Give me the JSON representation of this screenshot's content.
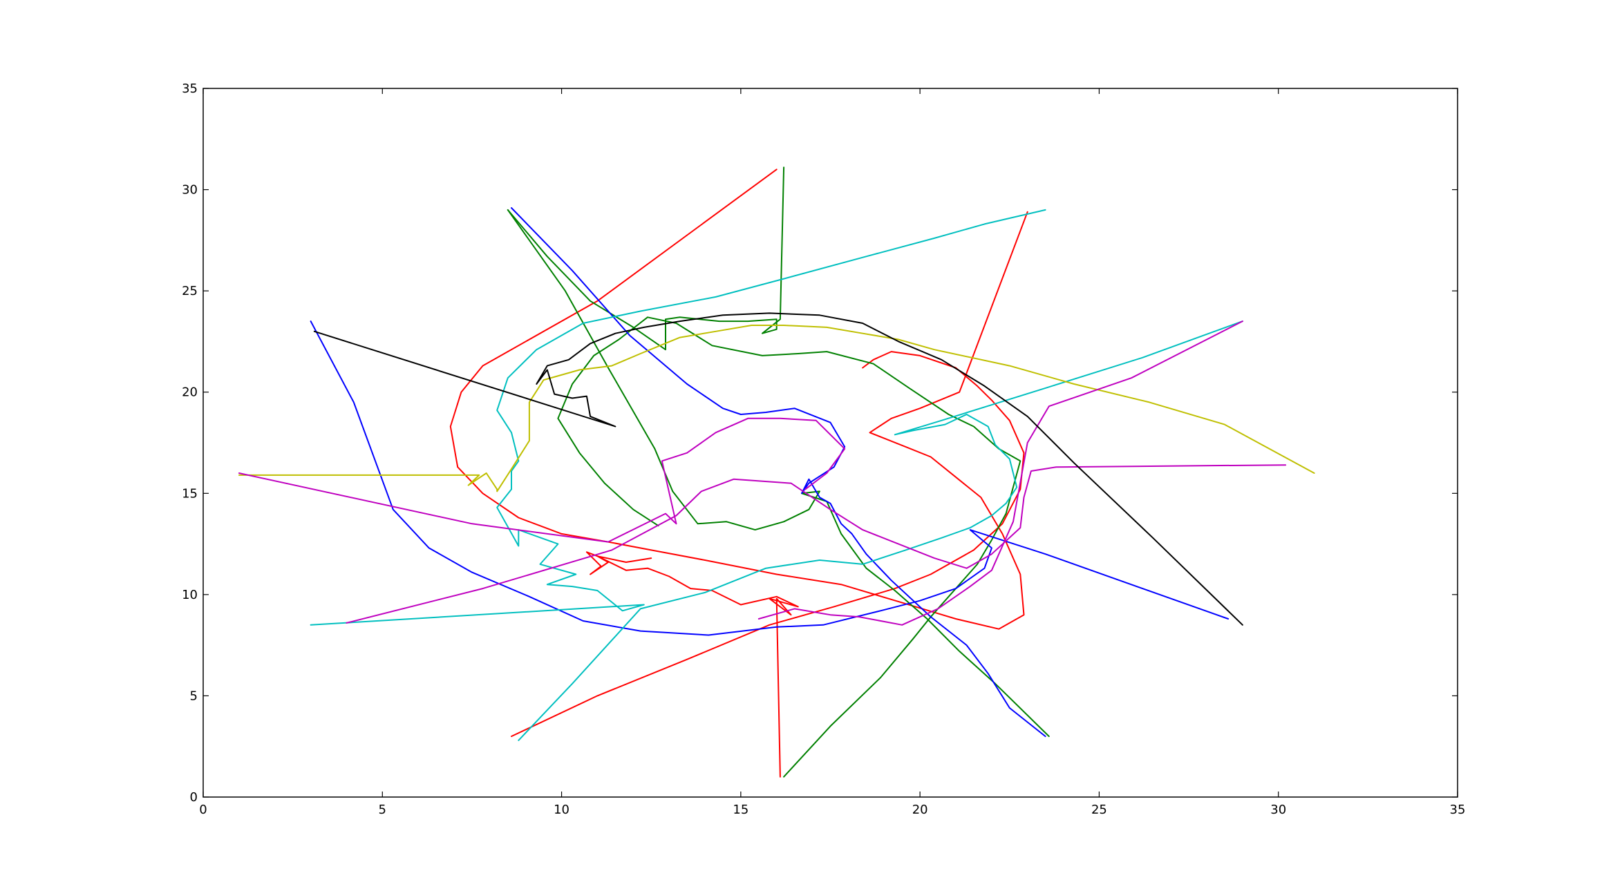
{
  "chart_data": {
    "type": "line",
    "title": "",
    "xlabel": "",
    "ylabel": "",
    "xlim": [
      0,
      35
    ],
    "ylim": [
      0,
      35
    ],
    "xticks": [
      0,
      5,
      10,
      15,
      20,
      25,
      30,
      35
    ],
    "yticks": [
      0,
      5,
      10,
      15,
      20,
      25,
      30,
      35
    ],
    "grid": false,
    "legend": "none",
    "series": [
      {
        "color": "#ff0000",
        "x": [
          16,
          11,
          7.8,
          7.2,
          6.9,
          7.1,
          7.8,
          8.8,
          10,
          11.3,
          12.5,
          14,
          16,
          17.8,
          19.5,
          21,
          22.2,
          22.9,
          22.8,
          22.3,
          21.7,
          21,
          20.3,
          19.6,
          18.6,
          19.2,
          20,
          21.1,
          23
        ],
        "y": [
          31,
          24.5,
          21.3,
          20,
          18.3,
          16.3,
          15,
          13.8,
          13,
          12.6,
          12.2,
          11.7,
          11,
          10.5,
          9.6,
          8.8,
          8.3,
          9,
          11,
          13,
          14.8,
          15.8,
          16.8,
          17.3,
          18,
          18.7,
          19.2,
          20,
          28.9
        ],
        "x_seg2": []
      },
      {
        "color": "#ff0000",
        "x": [
          8.6,
          11,
          13.5,
          15.8,
          17.6,
          19.3,
          20.3,
          21.5,
          22.3,
          22.8,
          22.9,
          22.5,
          22,
          21.6,
          21,
          20,
          19.2,
          18.7,
          18.4
        ],
        "y": [
          3,
          5,
          6.8,
          8.5,
          9.4,
          10.3,
          11,
          12.2,
          13.5,
          15.2,
          17,
          18.6,
          19.6,
          20.3,
          21.2,
          21.8,
          22,
          21.6,
          21.2
        ]
      },
      {
        "color": "#ff0000",
        "x": [
          16.1,
          16,
          16.4,
          15.8,
          16.6,
          16,
          15,
          14.2,
          13.6,
          13,
          12.4,
          11.8,
          11,
          10.7,
          11.1,
          10.8,
          11.3,
          11,
          11.8,
          12.5
        ],
        "y": [
          1,
          9.8,
          9,
          9.8,
          9.4,
          9.9,
          9.5,
          10.2,
          10.3,
          10.9,
          11.3,
          11.2,
          11.9,
          12.1,
          11.4,
          11,
          11.6,
          11.9,
          11.6,
          11.8
        ]
      },
      {
        "color": "#008000",
        "x": [
          8.5,
          9.6,
          10.8,
          12,
          12.9,
          12.9,
          13.3,
          14.4,
          15.2,
          16,
          16,
          15.6,
          16.1,
          16.2
        ],
        "y": [
          29,
          26.7,
          24.5,
          23.2,
          22.1,
          23.6,
          23.7,
          23.5,
          23.5,
          23.6,
          23.1,
          22.9,
          23.6,
          31.1
        ]
      },
      {
        "color": "#008000",
        "x": [
          16.2,
          17.5,
          18.9,
          19.8,
          20.3,
          21,
          21.6,
          22,
          22.4,
          22.8,
          22.2,
          21.5,
          20.8,
          19.7,
          18.7,
          17.4,
          16.6,
          15.6,
          14.2,
          13.2,
          12.4,
          11.6,
          10.9,
          10.3,
          9.9,
          10.5,
          11.2,
          12,
          12.7
        ],
        "y": [
          1,
          3.5,
          5.9,
          7.8,
          8.9,
          10.3,
          11.5,
          12.7,
          14,
          16.6,
          17.2,
          18.3,
          18.9,
          20.2,
          21.4,
          22,
          21.9,
          21.8,
          22.3,
          23.4,
          23.7,
          22.6,
          21.8,
          20.4,
          18.7,
          17,
          15.5,
          14.2,
          13.4
        ]
      },
      {
        "color": "#008000",
        "x": [
          8.5,
          10.1,
          11.3,
          12.6,
          13.1,
          13.8,
          14.6,
          15.4,
          16.2,
          16.9,
          17.2,
          16.7,
          17.4,
          17.8,
          18.5,
          19.3,
          20.2,
          21.1,
          22.1,
          23.6
        ],
        "y": [
          29,
          25,
          21.2,
          17.2,
          15.1,
          13.5,
          13.6,
          13.2,
          13.6,
          14.2,
          15.1,
          15,
          14.6,
          13,
          11.3,
          10.2,
          8.8,
          7.2,
          5.6,
          3
        ]
      },
      {
        "color": "#0000ff",
        "x": [
          8.6,
          10.3,
          11.9,
          13.5,
          14.5,
          15,
          15.7,
          16.5,
          17.5,
          17.9,
          17.6,
          16.9,
          16.7,
          16.9,
          17.2,
          17.5,
          17.8,
          18.1,
          18.5,
          19.2,
          20.3,
          21.3,
          21.9,
          22.5,
          23.5
        ],
        "y": [
          29.1,
          26,
          22.8,
          20.4,
          19.2,
          18.9,
          19,
          19.2,
          18.5,
          17.3,
          16.3,
          15.5,
          15,
          15.7,
          14.8,
          14.5,
          13.5,
          13,
          12,
          10.7,
          8.9,
          7.5,
          6.1,
          4.4,
          3
        ]
      },
      {
        "color": "#0000ff",
        "x": [
          3,
          4.2,
          5.3,
          6.3,
          7.5,
          9.1,
          10.6,
          12.2,
          14.1,
          16,
          17.3,
          18.9,
          20,
          21,
          21.8,
          22,
          21.4,
          23.5,
          28.6
        ],
        "y": [
          23.5,
          19.5,
          14.2,
          12.3,
          11.1,
          9.9,
          8.7,
          8.2,
          8,
          8.4,
          8.5,
          9.2,
          9.7,
          10.3,
          11.3,
          12.3,
          13.2,
          12,
          8.8
        ]
      },
      {
        "color": "#00bfbf",
        "x": [
          3,
          12.3,
          11.7,
          11,
          10.3,
          9.6,
          10.4,
          9.4,
          9.9,
          8.8,
          8.8,
          8.2,
          8.6,
          8.6,
          8.8,
          8.6,
          8.2,
          8.5,
          9.3,
          10.6,
          12.2,
          14.3,
          16.2,
          18.5,
          20.4,
          21.8,
          23.5
        ],
        "y": [
          8.5,
          9.5,
          9.2,
          10.2,
          10.4,
          10.5,
          11,
          11.5,
          12.5,
          13.2,
          12.4,
          14.3,
          15.2,
          16.1,
          16.6,
          18,
          19.1,
          20.7,
          22.1,
          23.4,
          24,
          24.7,
          25.6,
          26.7,
          27.6,
          28.3,
          29
        ]
      },
      {
        "color": "#00bfbf",
        "x": [
          8.8,
          10.3,
          12.2,
          14,
          15.7,
          17.2,
          18.4,
          19.6,
          20.6,
          21.4,
          22,
          22.4,
          22.7,
          22.5,
          22.1,
          21.9,
          21.3,
          20.7,
          19.8,
          19.3,
          20.6,
          23.5,
          26.2,
          29
        ],
        "y": [
          2.8,
          5.6,
          9.3,
          10.1,
          11.3,
          11.7,
          11.5,
          12.2,
          12.8,
          13.3,
          13.9,
          14.5,
          15.3,
          16.7,
          17.4,
          18.3,
          18.9,
          18.4,
          18.1,
          17.9,
          18.6,
          20.2,
          21.7,
          23.5
        ]
      },
      {
        "color": "#bfbf00",
        "x": [
          1,
          7.7,
          7.4,
          7.9,
          8.2,
          8.2,
          8.6,
          9.1,
          9.1,
          9.5,
          10.5,
          11.4,
          12.2,
          13.3,
          14.3,
          15.3,
          16.2,
          17.4,
          18.4,
          19.4,
          20.4,
          22.5,
          24.3,
          26.4,
          28.5,
          31
        ],
        "y": [
          15.9,
          15.9,
          15.4,
          16,
          15.2,
          15.1,
          16.2,
          17.6,
          19.5,
          20.6,
          21.1,
          21.3,
          21.9,
          22.7,
          23,
          23.3,
          23.3,
          23.2,
          22.9,
          22.6,
          22.1,
          21.3,
          20.4,
          19.5,
          18.4,
          16
        ]
      },
      {
        "color": "#bf00bf",
        "x": [
          1,
          7.5,
          11.3,
          12.9,
          13.2,
          12.8,
          13.5,
          14.3,
          15.2,
          16.1,
          17.1,
          17.9,
          17.4,
          16.8
        ],
        "y": [
          16,
          13.5,
          12.6,
          14,
          13.5,
          16.6,
          17,
          18,
          18.7,
          18.7,
          18.6,
          17.2,
          16,
          15.2
        ]
      },
      {
        "color": "#bf00bf",
        "x": [
          4,
          7.8,
          11.4,
          13.2,
          13.9,
          14.8,
          16.4,
          17.5,
          18.4,
          19.4,
          20.4,
          21.3,
          22,
          22.8,
          22.9,
          23.1,
          23.8,
          30.2
        ],
        "y": [
          8.6,
          10.3,
          12.2,
          13.9,
          15.1,
          15.7,
          15.5,
          14.2,
          13.2,
          12.5,
          11.8,
          11.3,
          12,
          13.3,
          14.8,
          16.1,
          16.3,
          16.4
        ]
      },
      {
        "color": "#bf00bf",
        "x": [
          15.5,
          16.5,
          17.5,
          18.3,
          19.5,
          20.5,
          21.4,
          22,
          22.6,
          23,
          23.6,
          25.9,
          29
        ],
        "y": [
          8.8,
          9.3,
          9,
          8.9,
          8.5,
          9.3,
          10.4,
          11.2,
          13.6,
          17.5,
          19.3,
          20.7,
          23.5
        ]
      },
      {
        "color": "#000000",
        "x": [
          3.1,
          11.5,
          10.8,
          10.7,
          10.3,
          9.8,
          9.6,
          9.3,
          9.6,
          10.2,
          10.8,
          11.5,
          12.3,
          13.3,
          14.5,
          15.8,
          17.2,
          18.4,
          19.4,
          20.6,
          21.8,
          23,
          24.3,
          26.5,
          29
        ],
        "y": [
          23,
          18.3,
          18.8,
          19.8,
          19.7,
          19.9,
          21.1,
          20.4,
          21.3,
          21.6,
          22.4,
          22.9,
          23.2,
          23.5,
          23.8,
          23.9,
          23.8,
          23.4,
          22.5,
          21.6,
          20.3,
          18.8,
          16.5,
          12.8,
          8.5
        ]
      }
    ]
  }
}
